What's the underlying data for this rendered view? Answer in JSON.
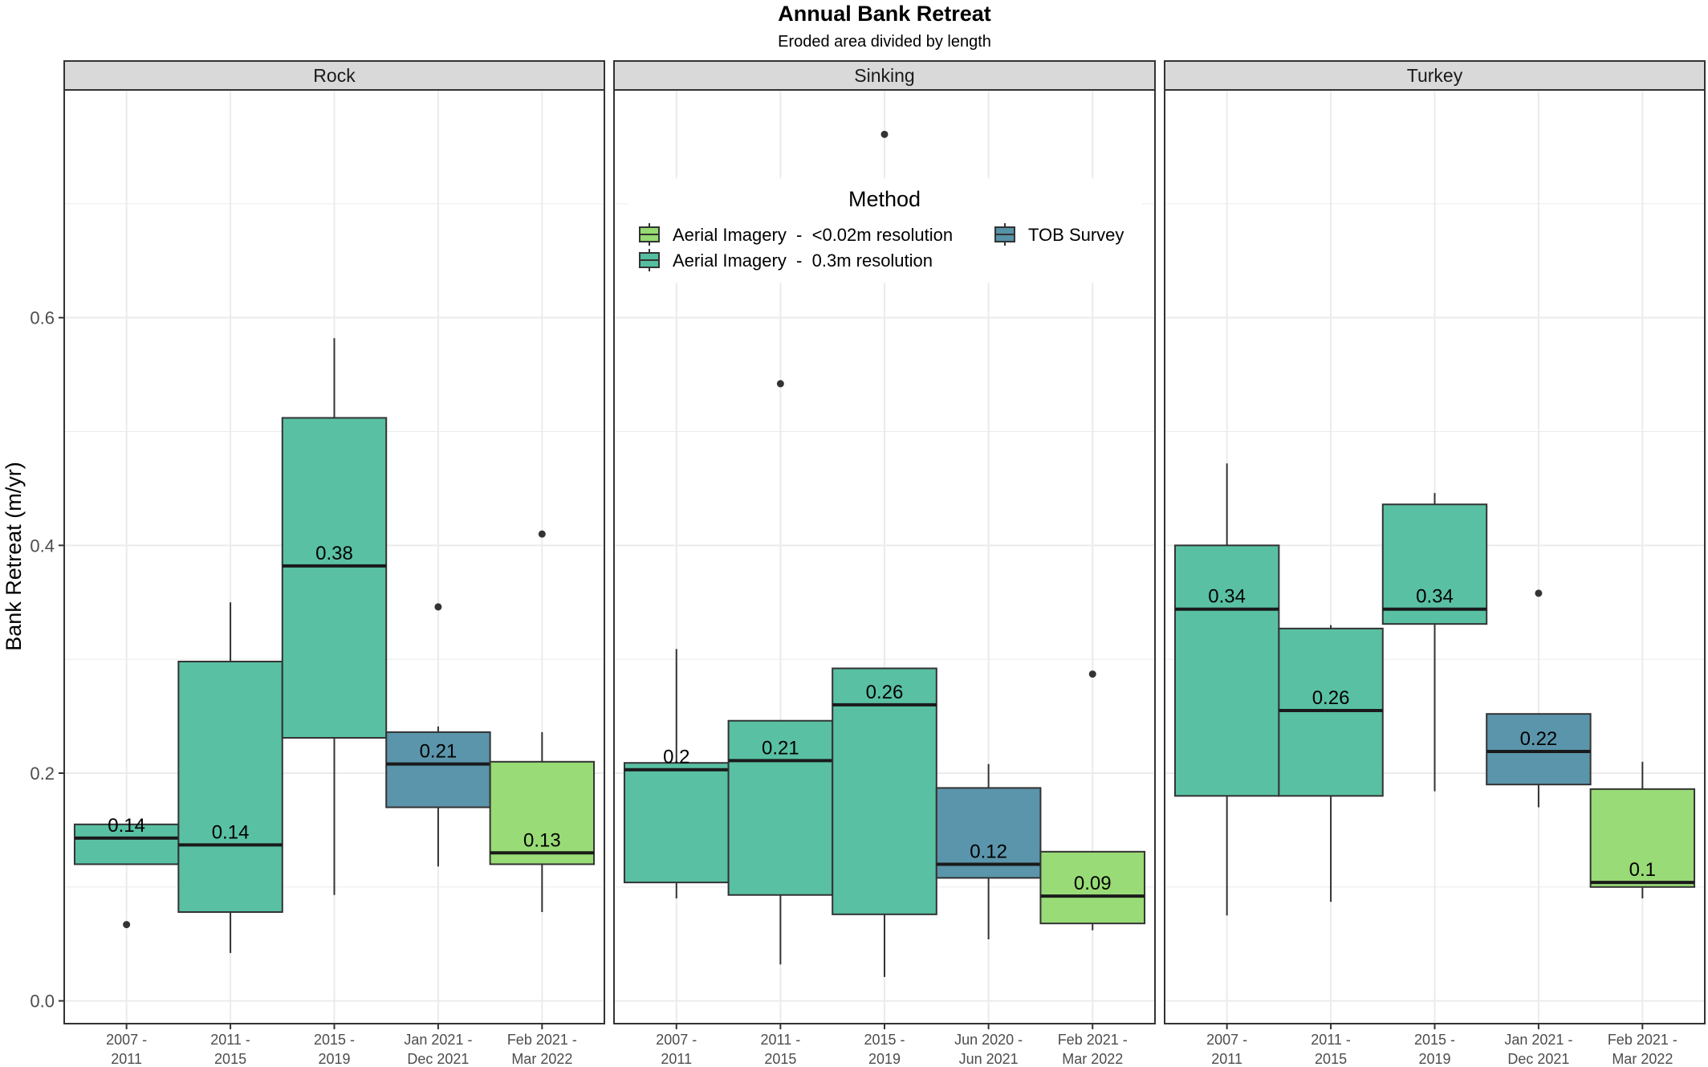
{
  "chart_data": {
    "type": "box",
    "title": "Annual Bank Retreat",
    "subtitle": "Eroded area divided by length",
    "ylabel": "Bank Retreat (m/yr)",
    "xlabel": "",
    "ylim": [
      -0.02,
      0.8
    ],
    "yticks": [
      0.0,
      0.2,
      0.4,
      0.6
    ],
    "ytick_labels": [
      "0.0",
      "0.2",
      "0.4",
      "0.6"
    ],
    "grid": true,
    "legend": {
      "title": "Method",
      "placement": "inside Sinking panel, top",
      "entries": [
        {
          "label": "Aerial Imagery  -  <0.02m resolution",
          "color": "#96DA72"
        },
        {
          "label": "TOB Survey",
          "color": "#5692A8"
        },
        {
          "label": "Aerial Imagery  -  0.3m resolution",
          "color": "#54BEA0"
        }
      ]
    },
    "colors": {
      "aerial_fine": "#96DA72",
      "aerial_coarse": "#54BEA0",
      "tob": "#5692A8",
      "strip": "#D9D9D9",
      "grid": "#EBEBEB"
    },
    "panels": [
      {
        "name": "Rock",
        "categories": [
          {
            "line1": "2007 -",
            "line2": "2011",
            "method": "aerial_coarse",
            "min": 0.12,
            "q1": 0.12,
            "median": 0.143,
            "q3": 0.155,
            "max": 0.155,
            "outliers": [
              0.067
            ],
            "label": "0.14"
          },
          {
            "line1": "2011 -",
            "line2": "2015",
            "method": "aerial_coarse",
            "min": 0.042,
            "q1": 0.078,
            "median": 0.137,
            "q3": 0.298,
            "max": 0.35,
            "outliers": [],
            "label": "0.14"
          },
          {
            "line1": "2015 -",
            "line2": "2019",
            "method": "aerial_coarse",
            "min": 0.093,
            "q1": 0.231,
            "median": 0.382,
            "q3": 0.512,
            "max": 0.582,
            "outliers": [],
            "label": "0.38"
          },
          {
            "line1": "Jan 2021 -",
            "line2": "Dec 2021",
            "method": "tob",
            "min": 0.118,
            "q1": 0.17,
            "median": 0.208,
            "q3": 0.236,
            "max": 0.241,
            "outliers": [
              0.346
            ],
            "label": "0.21"
          },
          {
            "line1": "Feb 2021 -",
            "line2": "Mar 2022",
            "method": "aerial_fine",
            "min": 0.078,
            "q1": 0.12,
            "median": 0.13,
            "q3": 0.21,
            "max": 0.236,
            "outliers": [
              0.41
            ],
            "label": "0.13"
          }
        ]
      },
      {
        "name": "Sinking",
        "categories": [
          {
            "line1": "2007 -",
            "line2": "2011",
            "method": "aerial_coarse",
            "min": 0.09,
            "q1": 0.104,
            "median": 0.203,
            "q3": 0.209,
            "max": 0.309,
            "outliers": [],
            "label": "0.2"
          },
          {
            "line1": "2011 -",
            "line2": "2015",
            "method": "aerial_coarse",
            "min": 0.032,
            "q1": 0.093,
            "median": 0.211,
            "q3": 0.246,
            "max": 0.246,
            "outliers": [
              0.542
            ],
            "label": "0.21"
          },
          {
            "line1": "2015 -",
            "line2": "2019",
            "method": "aerial_coarse",
            "min": 0.021,
            "q1": 0.076,
            "median": 0.26,
            "q3": 0.292,
            "max": 0.292,
            "outliers": [
              0.761
            ],
            "label": "0.26"
          },
          {
            "line1": "Jun 2020 -",
            "line2": "Jun 2021",
            "method": "tob",
            "min": 0.054,
            "q1": 0.108,
            "median": 0.12,
            "q3": 0.187,
            "max": 0.208,
            "outliers": [],
            "label": "0.12"
          },
          {
            "line1": "Feb 2021 -",
            "line2": "Mar 2022",
            "method": "aerial_fine",
            "min": 0.062,
            "q1": 0.068,
            "median": 0.092,
            "q3": 0.131,
            "max": 0.131,
            "outliers": [
              0.287
            ],
            "label": "0.09"
          }
        ]
      },
      {
        "name": "Turkey",
        "categories": [
          {
            "line1": "2007 -",
            "line2": "2011",
            "method": "aerial_coarse",
            "min": 0.075,
            "q1": 0.18,
            "median": 0.344,
            "q3": 0.4,
            "max": 0.472,
            "outliers": [],
            "label": "0.34"
          },
          {
            "line1": "2011 -",
            "line2": "2015",
            "method": "aerial_coarse",
            "min": 0.087,
            "q1": 0.18,
            "median": 0.255,
            "q3": 0.327,
            "max": 0.33,
            "outliers": [],
            "label": "0.26"
          },
          {
            "line1": "2015 -",
            "line2": "2019",
            "method": "aerial_coarse",
            "min": 0.184,
            "q1": 0.331,
            "median": 0.344,
            "q3": 0.436,
            "max": 0.446,
            "outliers": [],
            "label": "0.34"
          },
          {
            "line1": "Jan 2021 -",
            "line2": "Dec 2021",
            "method": "tob",
            "min": 0.17,
            "q1": 0.19,
            "median": 0.219,
            "q3": 0.252,
            "max": 0.252,
            "outliers": [
              0.358
            ],
            "label": "0.22"
          },
          {
            "line1": "Feb 2021 -",
            "line2": "Mar 2022",
            "method": "aerial_fine",
            "min": 0.09,
            "q1": 0.1,
            "median": 0.104,
            "q3": 0.186,
            "max": 0.21,
            "outliers": [],
            "label": "0.1"
          }
        ]
      }
    ]
  }
}
